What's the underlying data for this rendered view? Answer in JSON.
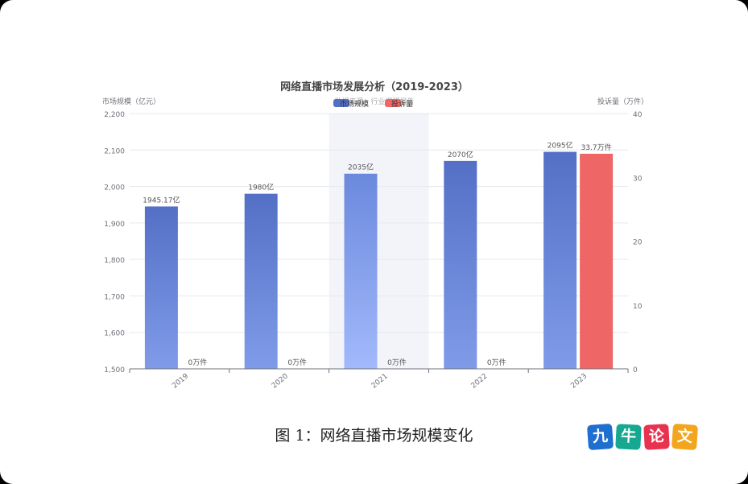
{
  "chart_data": {
    "type": "bar",
    "title": "网络直播市场发展分析（2019-2023）",
    "subtitle": "数据来源：行业调研报告",
    "categories": [
      "2019",
      "2020",
      "2021",
      "2022",
      "2023"
    ],
    "highlighted_category": "2021",
    "y_left": {
      "label": "市场规模（亿元）",
      "ylim": [
        1500,
        2200
      ],
      "ticks": [
        1500,
        1600,
        1700,
        1800,
        1900,
        2000,
        2100,
        2200
      ],
      "tick_labels": [
        "1,500",
        "1,600",
        "1,700",
        "1,800",
        "1,900",
        "2,000",
        "2,100",
        "2,200"
      ]
    },
    "y_right": {
      "label": "投诉量（万件）",
      "ylim": [
        0,
        40
      ],
      "ticks": [
        0,
        10,
        20,
        30,
        40
      ],
      "tick_labels": [
        "0",
        "10",
        "20",
        "30",
        "40"
      ]
    },
    "series": [
      {
        "name": "市场规模",
        "axis": "left",
        "color": "#5470c6",
        "values": [
          1945.17,
          1980,
          2035,
          2070,
          2095
        ],
        "data_labels": [
          "1945.17亿",
          "1980亿",
          "2035亿",
          "2070亿",
          "2095亿"
        ]
      },
      {
        "name": "投诉量",
        "axis": "right",
        "color": "#ee6666",
        "values": [
          0,
          0,
          0,
          0,
          33.7
        ],
        "data_labels": [
          "0万件",
          "0万件",
          "0万件",
          "0万件",
          "33.7万件"
        ]
      }
    ],
    "legend_position": "top-center",
    "grid": true
  },
  "caption": "图 1：网络直播市场规模变化",
  "logo": {
    "text": "九牛论文",
    "tiles": [
      {
        "char": "九",
        "color": "#1f6fd1"
      },
      {
        "char": "牛",
        "color": "#16a890"
      },
      {
        "char": "论",
        "color": "#e8324f"
      },
      {
        "char": "文",
        "color": "#f3a51e"
      }
    ]
  }
}
